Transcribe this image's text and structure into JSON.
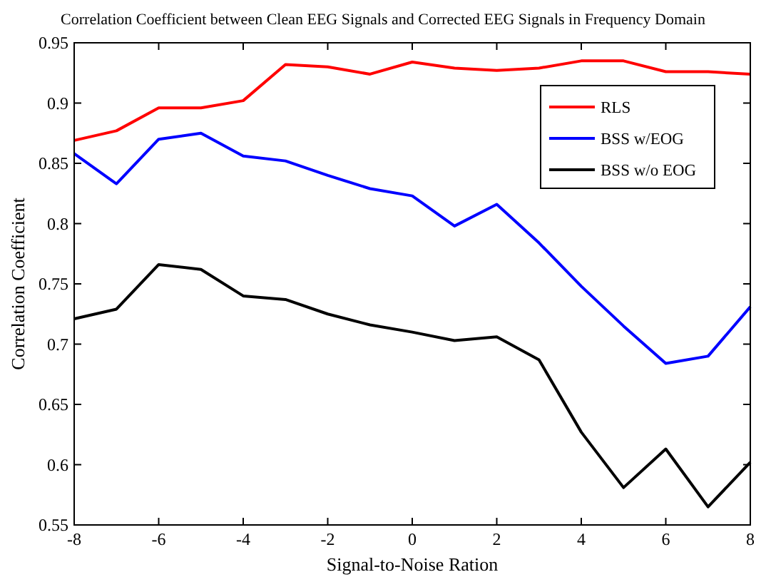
{
  "chart_data": {
    "type": "line",
    "title": "Correlation Coefficient between Clean EEG Signals and Corrected EEG Signals in Frequency Domain",
    "xlabel": "Signal-to-Noise Ration",
    "ylabel": "Correlation Coefficient",
    "x": [
      -8,
      -7,
      -6,
      -5,
      -4,
      -3,
      -2,
      -1,
      0,
      1,
      2,
      3,
      4,
      5,
      6,
      7,
      8
    ],
    "series": [
      {
        "name": "RLS",
        "color": "#ff0000",
        "values": [
          0.869,
          0.877,
          0.896,
          0.896,
          0.902,
          0.932,
          0.93,
          0.924,
          0.934,
          0.929,
          0.927,
          0.929,
          0.935,
          0.935,
          0.926,
          0.926,
          0.924
        ]
      },
      {
        "name": "BSS w/EOG",
        "color": "#0000ff",
        "values": [
          0.858,
          0.833,
          0.87,
          0.875,
          0.856,
          0.852,
          0.84,
          0.829,
          0.823,
          0.798,
          0.816,
          0.784,
          0.748,
          0.715,
          0.684,
          0.69,
          0.731
        ]
      },
      {
        "name": "BSS w/o EOG",
        "color": "#000000",
        "values": [
          0.721,
          0.729,
          0.766,
          0.762,
          0.74,
          0.737,
          0.725,
          0.716,
          0.71,
          0.703,
          0.706,
          0.687,
          0.627,
          0.581,
          0.613,
          0.565,
          0.602
        ]
      }
    ],
    "xlim": [
      -8,
      8
    ],
    "xticks": [
      -8,
      -6,
      -4,
      -2,
      0,
      2,
      4,
      6,
      8
    ],
    "ylim": [
      0.55,
      0.95
    ],
    "yticks": [
      0.55,
      0.6,
      0.65,
      0.7,
      0.75,
      0.8,
      0.85,
      0.9,
      0.95
    ],
    "legend": "top right",
    "grid": false,
    "marker": "none",
    "line_style": "solid"
  }
}
